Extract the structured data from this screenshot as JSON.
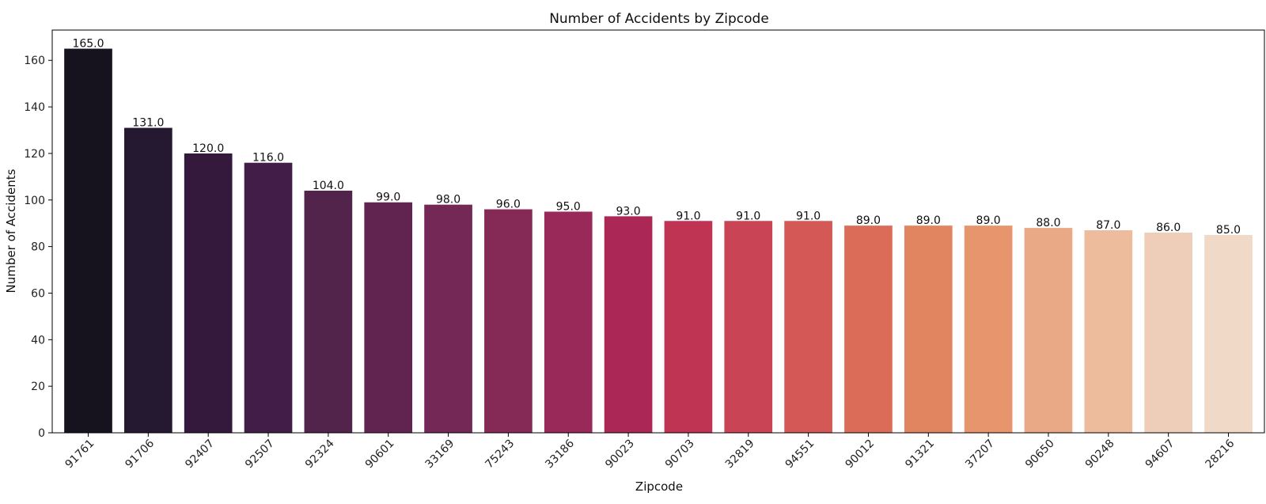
{
  "chart_data": {
    "type": "bar",
    "title": "Number of Accidents by Zipcode",
    "xlabel": "Zipcode",
    "ylabel": "Number of Accidents",
    "categories": [
      "91761",
      "91706",
      "92407",
      "92507",
      "92324",
      "90601",
      "33169",
      "75243",
      "33186",
      "90023",
      "90703",
      "32819",
      "94551",
      "90012",
      "91321",
      "37207",
      "90650",
      "90248",
      "94607",
      "28216"
    ],
    "values": [
      165,
      131,
      120,
      116,
      104,
      99,
      98,
      96,
      95,
      93,
      91,
      91,
      91,
      89,
      89,
      89,
      88,
      87,
      86,
      85
    ],
    "value_labels": [
      "165.0",
      "131.0",
      "120.0",
      "116.0",
      "104.0",
      "99.0",
      "98.0",
      "96.0",
      "95.0",
      "93.0",
      "91.0",
      "91.0",
      "91.0",
      "89.0",
      "89.0",
      "89.0",
      "88.0",
      "87.0",
      "86.0",
      "85.0"
    ],
    "colors": [
      "#16131f",
      "#251831",
      "#34193c",
      "#421d47",
      "#52234b",
      "#61234f",
      "#742856",
      "#852a57",
      "#992958",
      "#ab2856",
      "#bf3453",
      "#c94455",
      "#d45855",
      "#db6d58",
      "#e18560",
      "#e6956c",
      "#e9a886",
      "#ecbc9d",
      "#eeceb9",
      "#f1d9c7"
    ],
    "yticks": [
      0,
      20,
      40,
      60,
      80,
      100,
      120,
      140,
      160
    ],
    "ylim": [
      0,
      173
    ],
    "grid": false,
    "legend": "none"
  }
}
